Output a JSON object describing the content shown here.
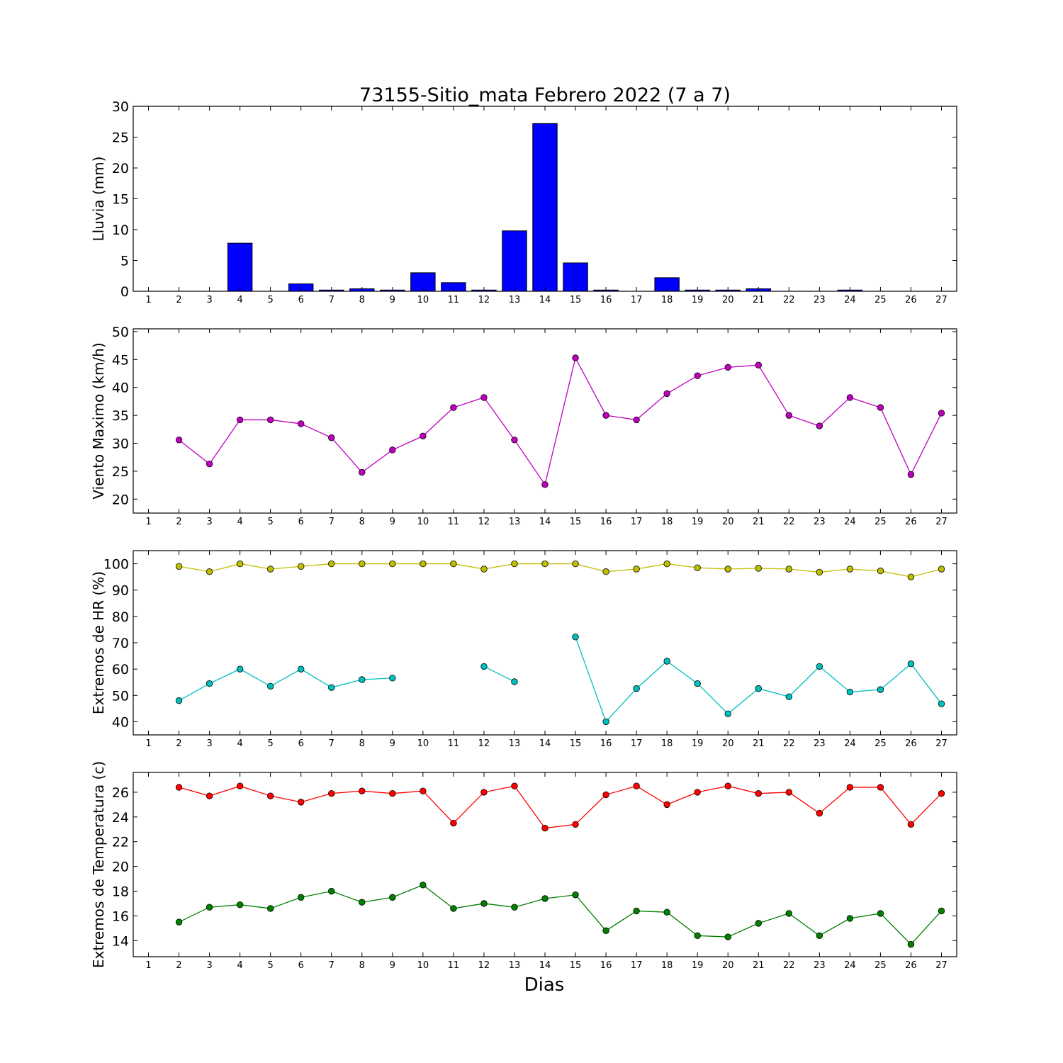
{
  "title": "73155-Sitio_mata Febrero 2022  (7 a 7)",
  "xlabel": "Dias",
  "chart_data": [
    {
      "type": "bar",
      "ylabel": "Lluvia (mm)",
      "ylim": [
        0,
        30
      ],
      "yticks": [
        0,
        5,
        10,
        15,
        20,
        25,
        30
      ],
      "xlim": [
        0.5,
        27.5
      ],
      "categories": [
        1,
        2,
        3,
        4,
        5,
        6,
        7,
        8,
        9,
        10,
        11,
        12,
        13,
        14,
        15,
        16,
        17,
        18,
        19,
        20,
        21,
        22,
        23,
        24,
        25,
        26,
        27
      ],
      "series": [
        {
          "color": "#0000ff",
          "values": [
            0,
            0,
            0,
            7.8,
            0,
            1.2,
            0.2,
            0.4,
            0.2,
            3.0,
            1.4,
            0.2,
            9.8,
            27.2,
            4.6,
            0.2,
            0,
            2.2,
            0.2,
            0.2,
            0.4,
            0,
            0,
            0.2,
            0,
            0,
            0
          ]
        }
      ]
    },
    {
      "type": "line",
      "ylabel": "Viento Maximo (km/h)",
      "ylim": [
        17.5,
        50.5
      ],
      "yticks": [
        20,
        25,
        30,
        35,
        40,
        45,
        50
      ],
      "xlim": [
        0.5,
        27.5
      ],
      "x": [
        1,
        2,
        3,
        4,
        5,
        6,
        7,
        8,
        9,
        10,
        11,
        12,
        13,
        14,
        15,
        16,
        17,
        18,
        19,
        20,
        21,
        22,
        23,
        24,
        25,
        26,
        27
      ],
      "series": [
        {
          "color": "#bf00bf",
          "values": [
            null,
            30.6,
            26.3,
            34.2,
            34.2,
            33.5,
            31.0,
            24.8,
            28.8,
            31.3,
            36.4,
            38.2,
            30.6,
            22.6,
            45.3,
            35.0,
            34.2,
            38.9,
            42.1,
            43.6,
            44.0,
            35.0,
            33.1,
            38.2,
            36.4,
            24.4,
            35.4
          ]
        }
      ]
    },
    {
      "type": "line",
      "ylabel": "Extremos de HR (%)",
      "ylim": [
        35,
        105
      ],
      "yticks": [
        40,
        50,
        60,
        70,
        80,
        90,
        100
      ],
      "xlim": [
        0.5,
        27.5
      ],
      "x": [
        1,
        2,
        3,
        4,
        5,
        6,
        7,
        8,
        9,
        10,
        11,
        12,
        13,
        14,
        15,
        16,
        17,
        18,
        19,
        20,
        21,
        22,
        23,
        24,
        25,
        26,
        27
      ],
      "series": [
        {
          "color": "#bfbf00",
          "values": [
            null,
            99,
            97,
            100,
            98,
            99,
            100,
            100,
            100,
            100,
            100,
            98,
            100,
            100,
            100,
            97,
            98,
            100,
            98.5,
            98,
            98.3,
            98,
            96.8,
            98,
            97.3,
            95,
            98
          ]
        },
        {
          "color": "#00bfbf",
          "values": [
            null,
            48,
            54.5,
            60,
            53.5,
            60,
            53,
            56,
            56.6,
            null,
            null,
            61,
            55.2,
            null,
            72.2,
            40,
            52.6,
            63,
            54.5,
            43,
            52.6,
            49.5,
            61,
            51.3,
            52.2,
            62,
            46.8
          ]
        }
      ]
    },
    {
      "type": "line",
      "ylabel": "Extremos de Temperatura (c)",
      "ylim": [
        12.7,
        27.6
      ],
      "yticks": [
        14,
        16,
        18,
        20,
        22,
        24,
        26
      ],
      "xlim": [
        0.5,
        27.5
      ],
      "x": [
        1,
        2,
        3,
        4,
        5,
        6,
        7,
        8,
        9,
        10,
        11,
        12,
        13,
        14,
        15,
        16,
        17,
        18,
        19,
        20,
        21,
        22,
        23,
        24,
        25,
        26,
        27
      ],
      "series": [
        {
          "color": "#ff0000",
          "values": [
            null,
            26.4,
            25.7,
            26.5,
            25.7,
            25.2,
            25.9,
            26.1,
            25.9,
            26.1,
            23.5,
            26.0,
            26.5,
            23.1,
            23.4,
            25.8,
            26.5,
            25.0,
            26.0,
            26.5,
            25.9,
            26.0,
            24.3,
            26.4,
            26.4,
            23.4,
            25.9
          ]
        },
        {
          "color": "#008000",
          "values": [
            null,
            15.5,
            16.7,
            16.9,
            16.6,
            17.5,
            18.0,
            17.1,
            17.5,
            18.5,
            16.6,
            17.0,
            16.7,
            17.4,
            17.7,
            14.8,
            16.4,
            16.3,
            14.4,
            14.3,
            15.4,
            16.2,
            14.4,
            15.8,
            16.2,
            13.7,
            16.4
          ]
        }
      ]
    }
  ]
}
